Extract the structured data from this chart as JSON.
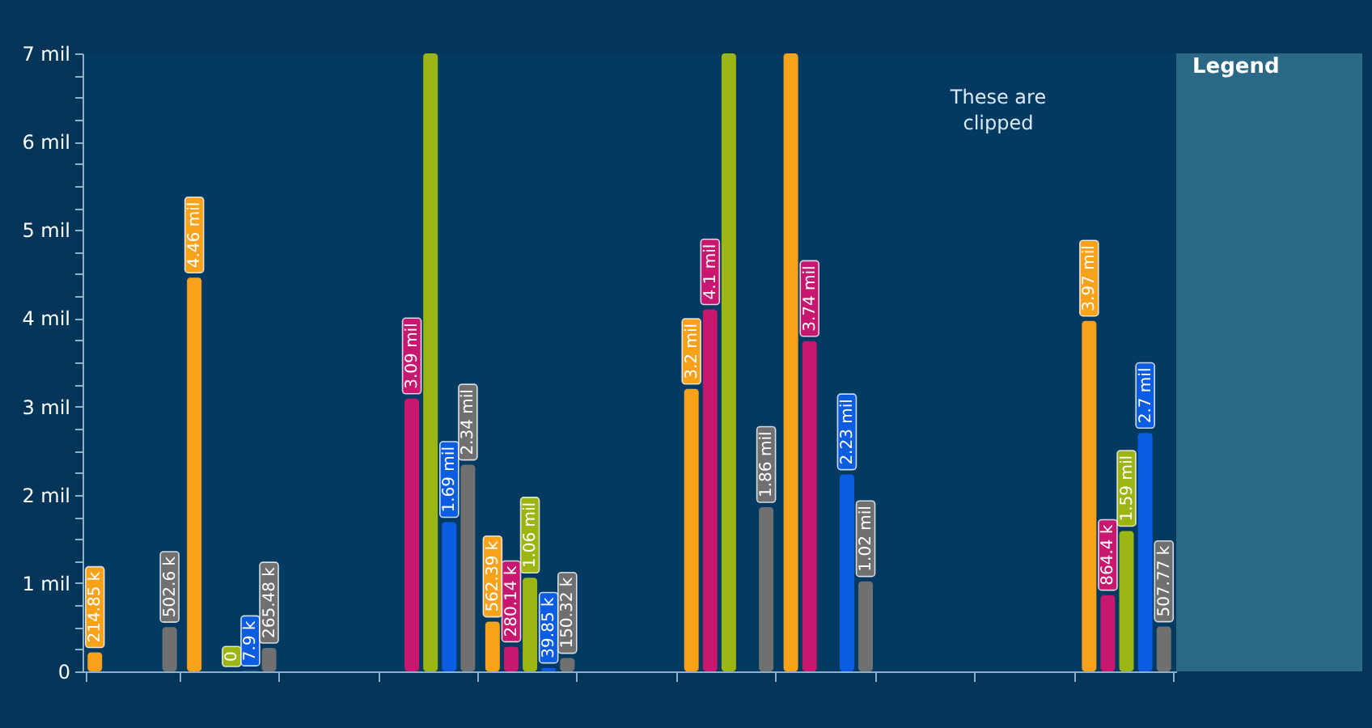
{
  "chart_data": {
    "type": "bar",
    "categories": [
      null,
      null,
      null,
      null,
      null,
      null,
      null,
      null,
      null,
      null,
      null
    ],
    "series": [
      {
        "color": "#f8a21c",
        "values": [
          0.21485,
          4.46,
          null,
          null,
          0.56239,
          null,
          3.2,
          7,
          null,
          null,
          3.97
        ],
        "value_labels": [
          "214.85 k",
          "4.46 mil",
          null,
          null,
          "562.39 k",
          null,
          "3.2 mil",
          null,
          null,
          null,
          "3.97 mil"
        ]
      },
      {
        "color": "#c8176e",
        "values": [
          null,
          null,
          null,
          3.09,
          0.28014,
          null,
          4.1,
          3.74,
          null,
          null,
          0.8644
        ],
        "value_labels": [
          null,
          null,
          null,
          "3.09 mil",
          "280.14 k",
          null,
          "4.1 mil",
          "3.74 mil",
          null,
          null,
          "864.4 k"
        ]
      },
      {
        "color": "#9db512",
        "values": [
          null,
          0,
          null,
          7,
          1.06,
          null,
          7,
          null,
          null,
          null,
          1.59
        ],
        "value_labels": [
          null,
          "0",
          null,
          null,
          "1.06 mil",
          null,
          null,
          null,
          null,
          null,
          "1.59 mil"
        ]
      },
      {
        "color": "#0b5ce0",
        "values": [
          null,
          0.0079,
          null,
          1.69,
          0.03985,
          null,
          null,
          2.23,
          null,
          null,
          2.7
        ],
        "value_labels": [
          null,
          "7.9 k",
          null,
          "1.69 mil",
          "39.85 k",
          null,
          null,
          "2.23 mil",
          null,
          null,
          "2.7 mil"
        ]
      },
      {
        "color": "#707070",
        "values": [
          0.5026,
          0.26548,
          null,
          2.34,
          0.15032,
          null,
          1.86,
          1.02,
          null,
          null,
          0.50777
        ],
        "value_labels": [
          "502.6 k",
          "265.48 k",
          null,
          "2.34 mil",
          "150.32 k",
          null,
          "1.86 mil",
          "1.02 mil",
          null,
          null,
          "507.77 k"
        ]
      }
    ],
    "ylim": [
      0,
      7
    ],
    "yticks": [
      0,
      {
        "value": 0.25,
        "label": null
      },
      {
        "value": 0.5,
        "label": null
      },
      {
        "value": 0.75,
        "label": null
      },
      {
        "value": 1,
        "label": "1 mil"
      },
      {
        "value": 1.25,
        "label": null
      },
      {
        "value": 1.5,
        "label": null
      },
      {
        "value": 1.75,
        "label": null
      },
      {
        "value": 2,
        "label": "2 mil"
      },
      {
        "value": 2.25,
        "label": null
      },
      {
        "value": 2.5,
        "label": null
      },
      {
        "value": 2.75,
        "label": null
      },
      {
        "value": 3,
        "label": "3 mil"
      },
      {
        "value": 3.25,
        "label": null
      },
      {
        "value": 3.5,
        "label": null
      },
      {
        "value": 3.75,
        "label": null
      },
      {
        "value": 4,
        "label": "4 mil"
      },
      {
        "value": 4.25,
        "label": null
      },
      {
        "value": 4.5,
        "label": null
      },
      {
        "value": 4.75,
        "label": null
      },
      {
        "value": 5,
        "label": "5 mil"
      },
      {
        "value": 5.25,
        "label": null
      },
      {
        "value": 5.5,
        "label": null
      },
      {
        "value": 5.75,
        "label": null
      },
      {
        "value": 6,
        "label": "6 mil"
      },
      {
        "value": 6.25,
        "label": null
      },
      {
        "value": 6.5,
        "label": null
      },
      {
        "value": 6.75,
        "label": null
      },
      {
        "value": 7,
        "label": "7 mil"
      }
    ],
    "annotations": [
      "These are clipped",
      "Legend"
    ]
  }
}
